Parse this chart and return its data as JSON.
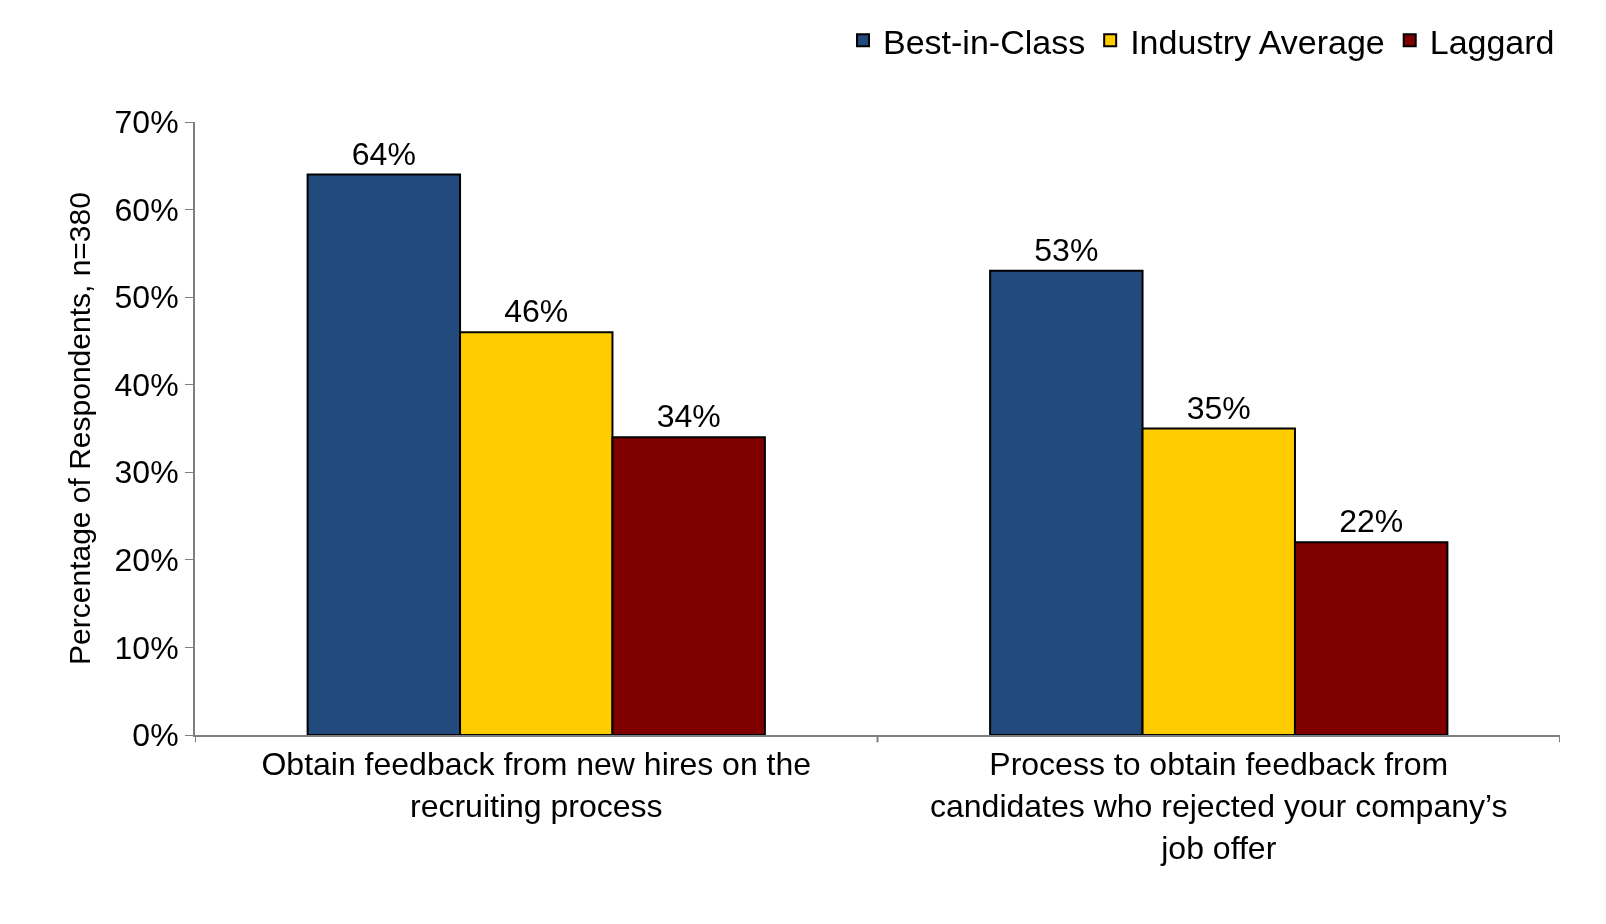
{
  "chart_data": {
    "type": "bar",
    "ylabel": "Percentage of Respondents, n=380",
    "categories": [
      "Obtain feedback from new hires on the recruiting process",
      "Process to obtain feedback from candidates who rejected your company’s job offer"
    ],
    "series": [
      {
        "name": "Best-in-Class",
        "color": "#234a7c",
        "values": [
          64,
          53
        ],
        "value_labels": [
          "64%",
          "53%"
        ]
      },
      {
        "name": "Industry Average",
        "color": "#ffcc00",
        "values": [
          46,
          35
        ],
        "value_labels": [
          "46%",
          "35%"
        ]
      },
      {
        "name": "Laggard",
        "color": "#800000",
        "values": [
          34,
          22
        ],
        "value_labels": [
          "34%",
          "22%"
        ]
      }
    ],
    "ylim": [
      0,
      70
    ],
    "yticks": [
      {
        "value": 0,
        "label": "0%"
      },
      {
        "value": 10,
        "label": "10%"
      },
      {
        "value": 20,
        "label": "20%"
      },
      {
        "value": 30,
        "label": "30%"
      },
      {
        "value": 40,
        "label": "40%"
      },
      {
        "value": 50,
        "label": "50%"
      },
      {
        "value": 60,
        "label": "60%"
      },
      {
        "value": 70,
        "label": "70%"
      }
    ],
    "legend": "top right"
  }
}
